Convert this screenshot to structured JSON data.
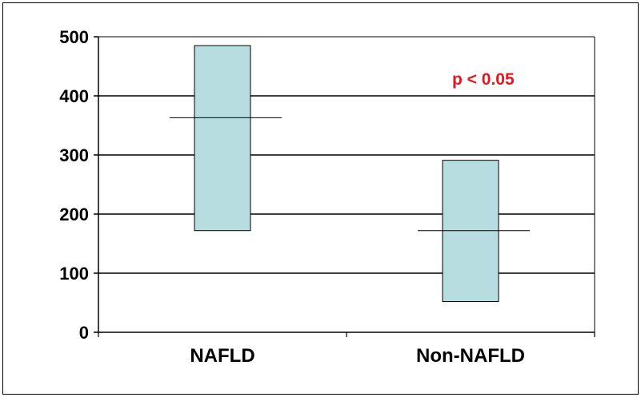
{
  "chart_data": {
    "type": "box",
    "categories": [
      "NAFLD",
      "Non-NAFLD"
    ],
    "boxes": [
      {
        "category": "NAFLD",
        "low": 172,
        "high": 485,
        "median": 363
      },
      {
        "category": "Non-NAFLD",
        "low": 52,
        "high": 291,
        "median": 172
      }
    ],
    "ylim": [
      0,
      500
    ],
    "yticks": [
      "0",
      "100",
      "200",
      "300",
      "400",
      "500"
    ],
    "grid": true,
    "annotation": {
      "text": "p < 0.05",
      "color": "#e8141e"
    },
    "box_fill": "#b7dde0",
    "title": "",
    "xlabel": "",
    "ylabel": ""
  }
}
